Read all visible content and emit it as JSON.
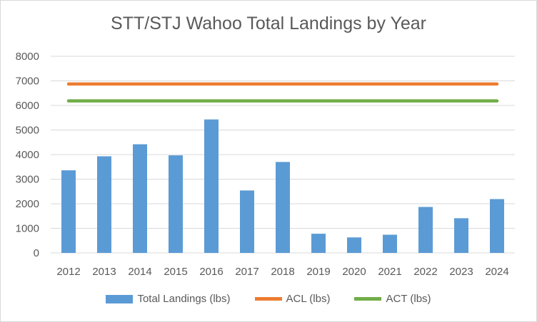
{
  "chart_data": {
    "type": "bar",
    "title": "STT/STJ Wahoo Total Landings by Year",
    "categories": [
      "2012",
      "2013",
      "2014",
      "2015",
      "2016",
      "2017",
      "2018",
      "2019",
      "2020",
      "2021",
      "2022",
      "2023",
      "2024"
    ],
    "series": [
      {
        "name": "Total Landings (lbs)",
        "kind": "bar",
        "color": "#5b9bd5",
        "values": [
          3360,
          3930,
          4420,
          3970,
          5430,
          2540,
          3700,
          780,
          630,
          740,
          1870,
          1410,
          2190
        ]
      },
      {
        "name": "ACL (lbs)",
        "kind": "line",
        "color": "#ed7d31",
        "values": [
          6873,
          6873,
          6873,
          6873,
          6873,
          6873,
          6873,
          6873,
          6873,
          6873,
          6873,
          6873,
          6873
        ]
      },
      {
        "name": "ACT (lbs)",
        "kind": "line",
        "color": "#70ad47",
        "values": [
          6185,
          6185,
          6185,
          6185,
          6185,
          6185,
          6185,
          6185,
          6185,
          6185,
          6185,
          6185,
          6185
        ]
      }
    ],
    "ylim": [
      0,
      8000
    ],
    "yticks": [
      0,
      1000,
      2000,
      3000,
      4000,
      5000,
      6000,
      7000,
      8000
    ],
    "xlabel": "",
    "ylabel": "",
    "grid": true,
    "legend_position": "bottom"
  }
}
